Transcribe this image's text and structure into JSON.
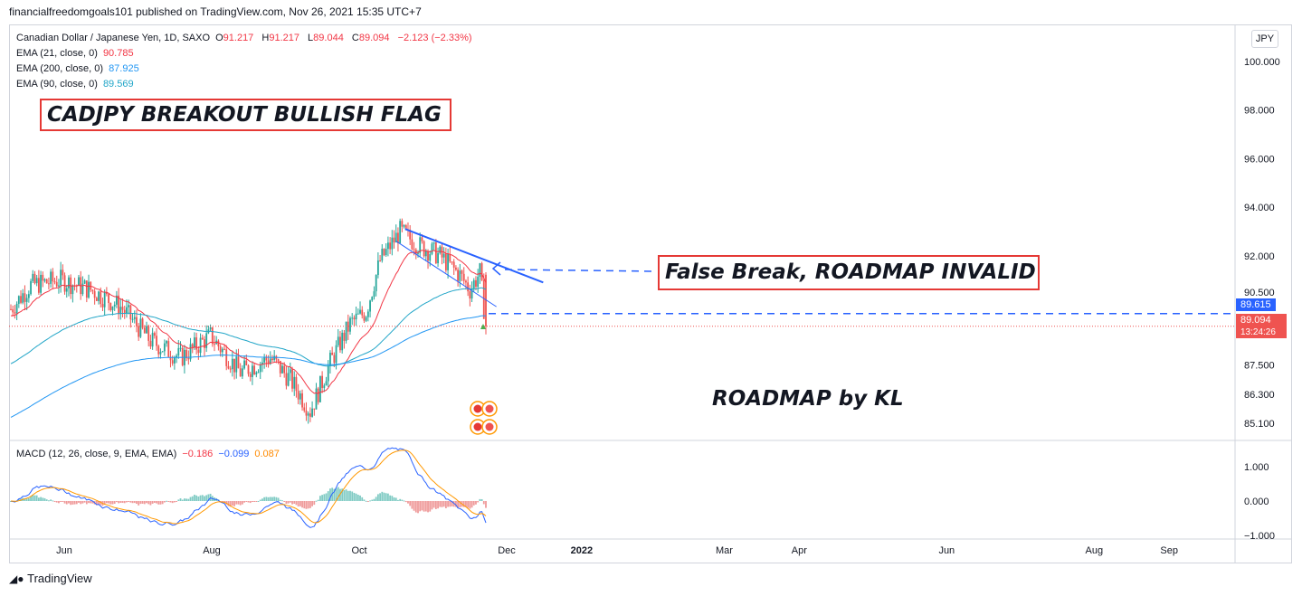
{
  "publisher_line": "financialfreedomgoals101 published on TradingView.com, Nov 26, 2021 15:35 UTC+7",
  "symbol": {
    "name": "Canadian Dollar / Japanese Yen, 1D, SAXO",
    "o_label": "O",
    "o": "91.217",
    "h_label": "H",
    "h": "91.217",
    "l_label": "L",
    "l": "89.044",
    "c_label": "C",
    "c": "89.094",
    "change": "−2.123 (−2.33%)"
  },
  "indicators": [
    {
      "label": "EMA (21, close, 0)",
      "value": "90.785",
      "color": "#f23645"
    },
    {
      "label": "EMA (200, close, 0)",
      "value": "87.925",
      "color": "#2196f3"
    },
    {
      "label": "EMA (90, close, 0)",
      "value": "89.569",
      "color": "#22a6c8"
    }
  ],
  "annotations": {
    "title": "CADJPY BREAKOUT BULLISH FLAG",
    "false_break": "False Break, ROADMAP INVALID",
    "roadmap": "ROADMAP by KL"
  },
  "currency": "JPY",
  "price_tags": {
    "level": "89.615",
    "last": "89.094",
    "countdown": "13:24:26"
  },
  "macd": {
    "label": "MACD (12, 26, close, 9, EMA, EMA)",
    "hist": "−0.186",
    "macd": "−0.099",
    "signal": "0.087"
  },
  "footer": "TradingView",
  "colors": {
    "up": "#26a69a",
    "down": "#ef5350",
    "ema21": "#f23645",
    "ema90": "#22a6c8",
    "ema200": "#2196f3",
    "trend": "#2962ff",
    "macd_line": "#2962ff",
    "signal_line": "#ff9800"
  },
  "chart_data": [
    {
      "type": "candlestick",
      "title": "Canadian Dollar / Japanese Yen, 1D, SAXO",
      "y_ticks": [
        "100.000",
        "98.000",
        "96.000",
        "94.000",
        "92.000",
        "90.500",
        "87.500",
        "86.300",
        "85.100"
      ],
      "y_tick_values": [
        100,
        98,
        96,
        94,
        92,
        90.5,
        87.5,
        86.3,
        85.1
      ],
      "x_ticks": [
        "Jun",
        "Aug",
        "Oct",
        "Dec",
        "2022",
        "Mar",
        "Apr",
        "Jun",
        "Aug",
        "Sep"
      ],
      "x_tick_dates": [
        "2021-06-01",
        "2021-08-01",
        "2021-10-01",
        "2021-12-01",
        "2022-01-01",
        "2022-03-01",
        "2022-04-01",
        "2022-06-01",
        "2022-08-01",
        "2022-09-01"
      ],
      "series": [
        {
          "name": "EMA (21, close, 0)",
          "last": 90.785
        },
        {
          "name": "EMA (200, close, 0)",
          "last": 87.925
        },
        {
          "name": "EMA (90, close, 0)",
          "last": 89.569
        }
      ],
      "trend_line_start": {
        "date": "2021-10-20",
        "price": 93.1
      },
      "trend_line_end": {
        "date": "2021-12-03",
        "price": 90.6
      },
      "horizontal_level": 89.615,
      "last_close": 89.094,
      "ohlc_last": {
        "open": 91.217,
        "high": 91.217,
        "low": 89.044,
        "close": 89.094
      }
    },
    {
      "type": "bar",
      "title": "MACD (12, 26, close, 9, EMA, EMA)",
      "y_ticks": [
        "1.000",
        "0.000",
        "−1.000"
      ],
      "y_tick_values": [
        1,
        0,
        -1
      ],
      "last": {
        "histogram": -0.186,
        "macd": -0.099,
        "signal": 0.087
      }
    }
  ]
}
